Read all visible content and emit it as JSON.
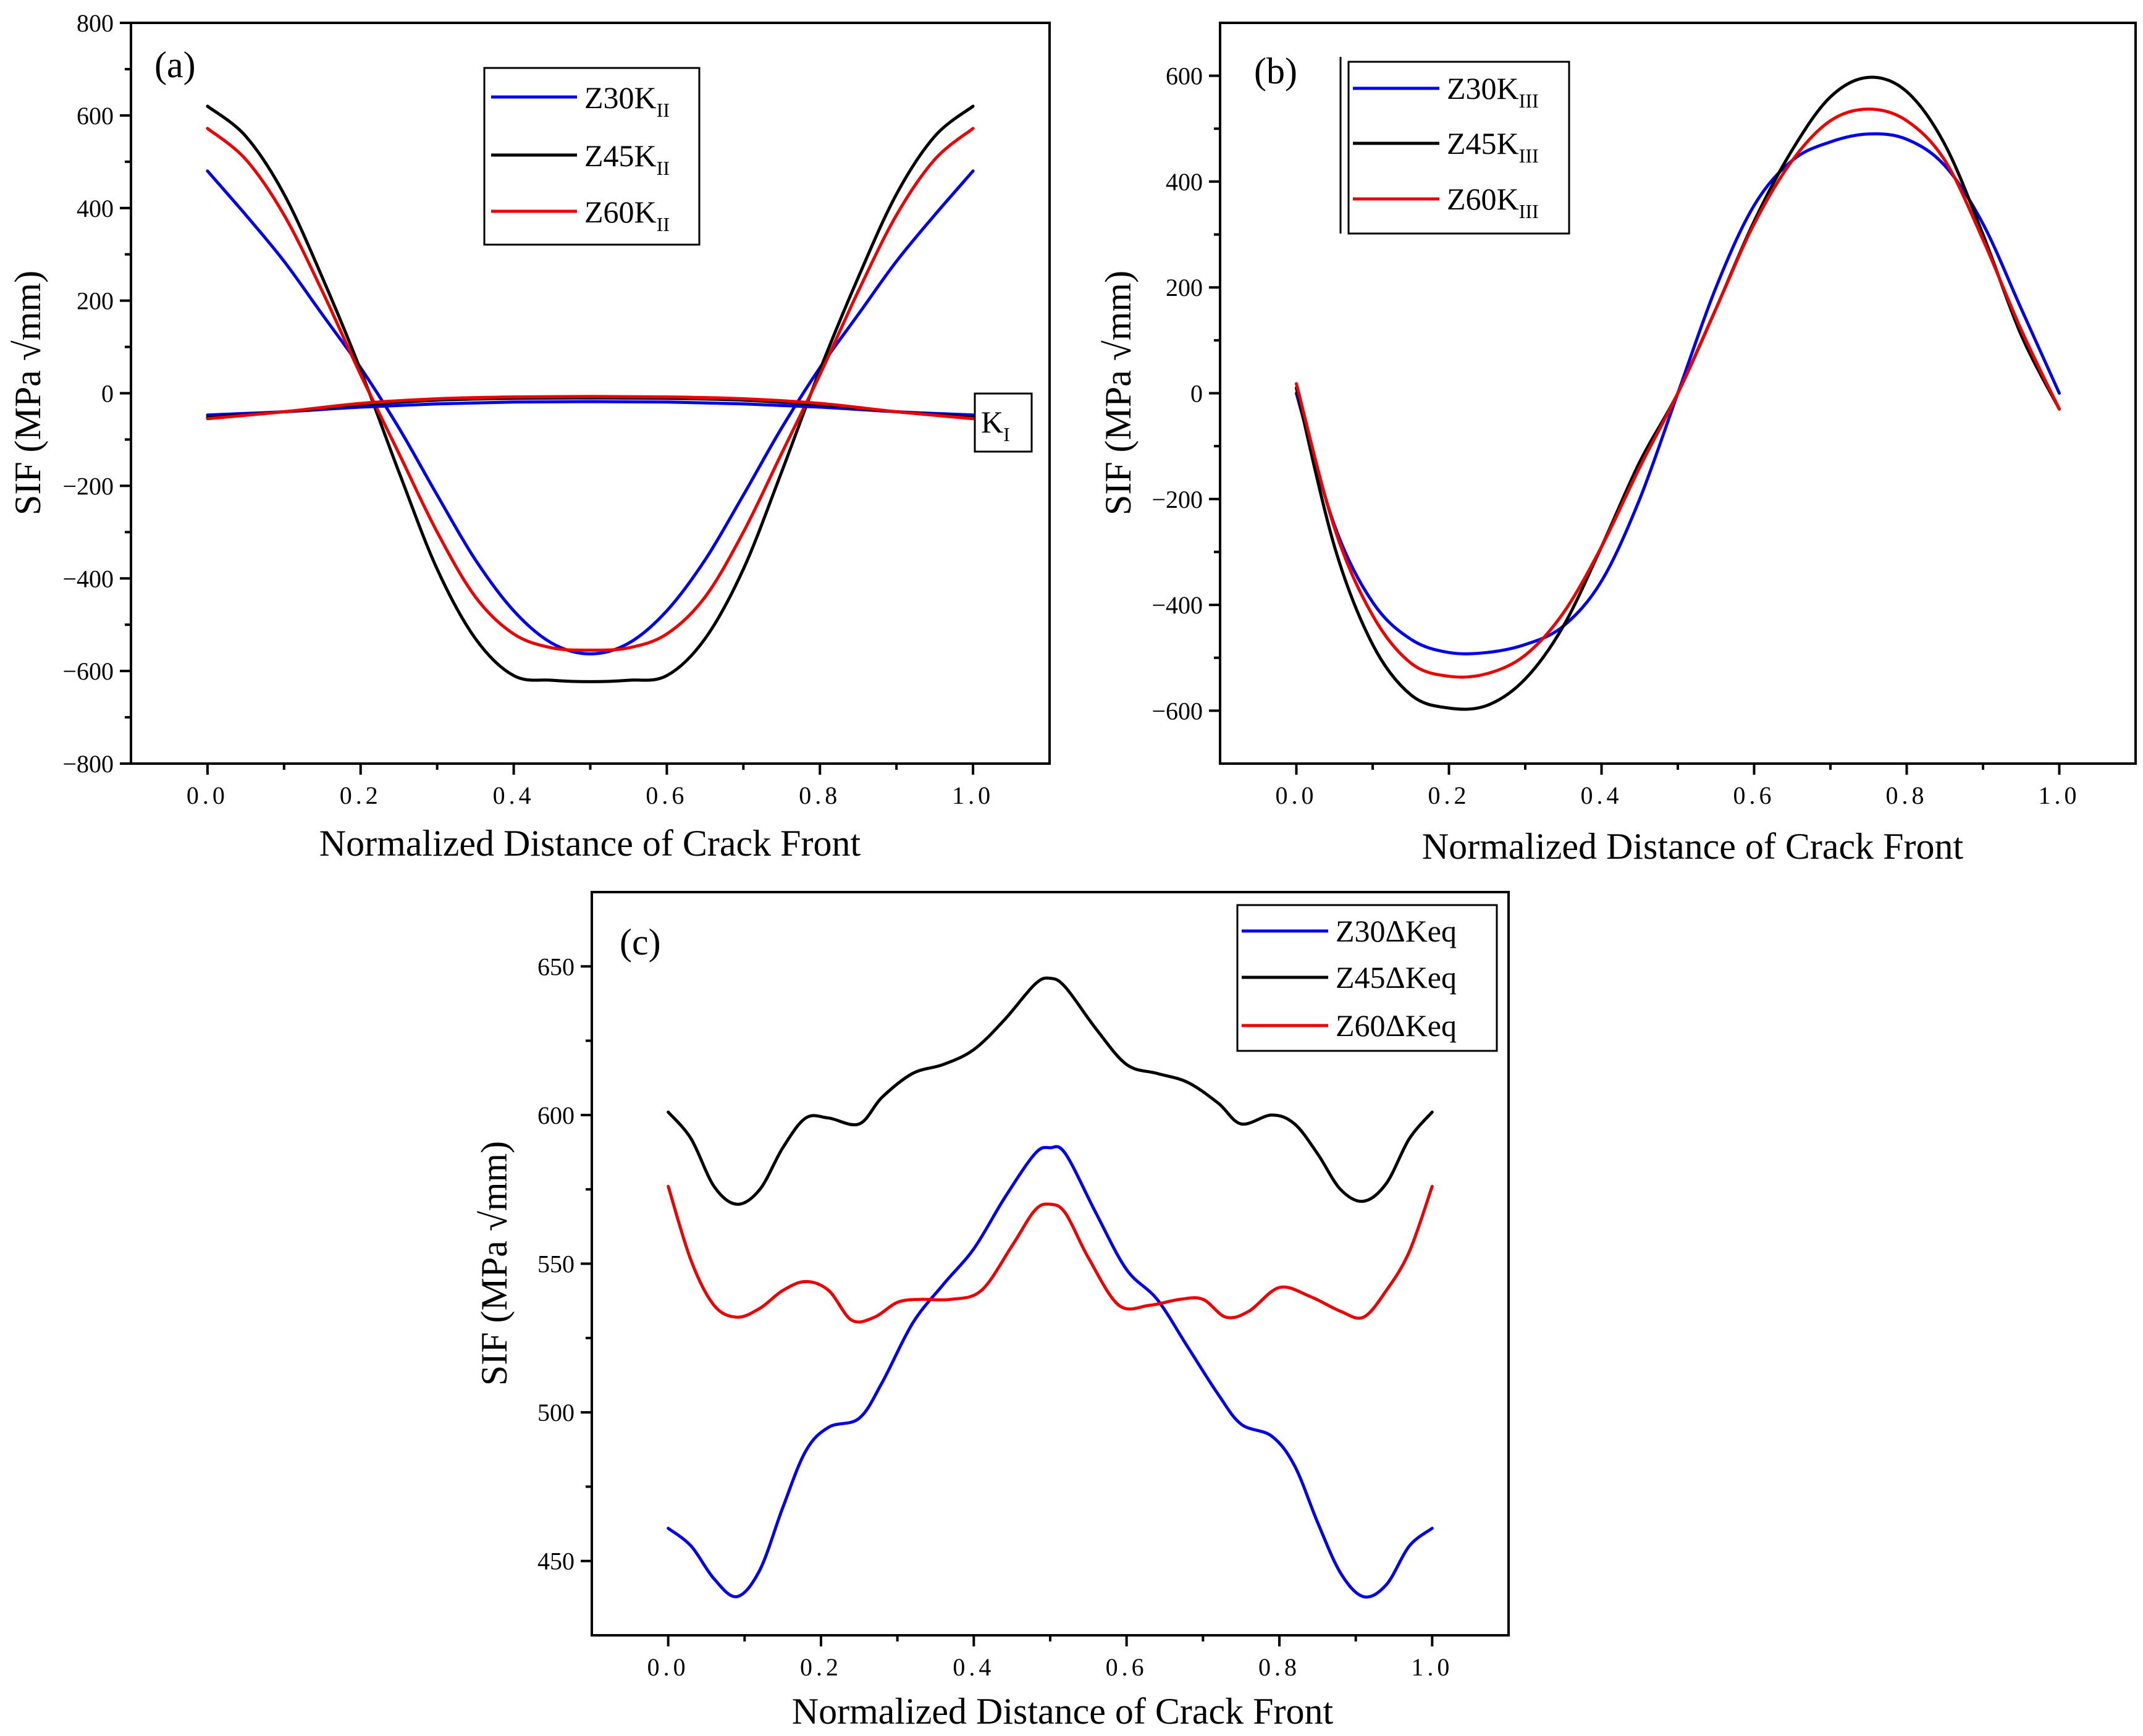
{
  "chart_data": [
    {
      "panel": "(a)",
      "type": "line",
      "title": "",
      "xlabel": "Normalized Distance of Crack Front",
      "ylabel": "SIF (MPa √mm)",
      "xlim": [
        -0.1,
        1.1
      ],
      "ylim": [
        -800,
        800
      ],
      "xticks": [
        0.0,
        0.2,
        0.4,
        0.6,
        0.8,
        1.0
      ],
      "xtick_labels": [
        "0.0",
        "0.2",
        "0.4",
        "0.6",
        "0.8",
        "1.0"
      ],
      "yticks": [
        -800,
        -600,
        -400,
        -200,
        0,
        200,
        400,
        600,
        800
      ],
      "ytick_labels": [
        "−800",
        "−600",
        "−400",
        "−200",
        "0",
        "200",
        "400",
        "600",
        "800"
      ],
      "legend_position": "top-center",
      "annotation": {
        "base": "K",
        "sub": "I"
      },
      "series": [
        {
          "name": "Z30K",
          "sub": "II",
          "color": "#0000ee",
          "in_legend": true,
          "x": [
            0.0,
            0.05,
            0.1,
            0.15,
            0.2,
            0.25,
            0.3,
            0.35,
            0.4,
            0.45,
            0.5,
            0.55,
            0.6,
            0.65,
            0.7,
            0.75,
            0.8,
            0.85,
            0.9,
            0.95,
            1.0
          ],
          "y": [
            480,
            385,
            285,
            170,
            55,
            -75,
            -220,
            -360,
            -470,
            -540,
            -563,
            -540,
            -470,
            -360,
            -220,
            -75,
            55,
            170,
            285,
            385,
            480
          ]
        },
        {
          "name": "Z45K",
          "sub": "II",
          "color": "#000000",
          "in_legend": true,
          "x": [
            0.0,
            0.05,
            0.1,
            0.15,
            0.2,
            0.25,
            0.3,
            0.35,
            0.4,
            0.45,
            0.5,
            0.55,
            0.6,
            0.65,
            0.7,
            0.75,
            0.8,
            0.85,
            0.9,
            0.95,
            1.0
          ],
          "y": [
            620,
            555,
            430,
            250,
            50,
            -170,
            -380,
            -530,
            -610,
            -620,
            -623,
            -620,
            -610,
            -530,
            -380,
            -170,
            50,
            250,
            430,
            555,
            620
          ]
        },
        {
          "name": "Z60K",
          "sub": "II",
          "color": "#ee0000",
          "in_legend": true,
          "x": [
            0.0,
            0.05,
            0.1,
            0.15,
            0.2,
            0.25,
            0.3,
            0.35,
            0.4,
            0.45,
            0.5,
            0.55,
            0.6,
            0.65,
            0.7,
            0.75,
            0.8,
            0.85,
            0.9,
            0.95,
            1.0
          ],
          "y": [
            572,
            505,
            385,
            220,
            40,
            -130,
            -300,
            -440,
            -520,
            -550,
            -555,
            -550,
            -520,
            -440,
            -300,
            -130,
            40,
            220,
            385,
            505,
            572
          ]
        },
        {
          "name": "Z30K_I",
          "sub": "",
          "color": "#0000ee",
          "in_legend": false,
          "x": [
            0.0,
            0.1,
            0.2,
            0.3,
            0.4,
            0.5,
            0.6,
            0.7,
            0.8,
            0.9,
            1.0
          ],
          "y": [
            -47,
            -40,
            -30,
            -23,
            -19,
            -18,
            -19,
            -23,
            -30,
            -40,
            -47
          ]
        },
        {
          "name": "Z45K_I",
          "sub": "",
          "color": "#000000",
          "in_legend": false,
          "x": [
            0.0,
            0.1,
            0.2,
            0.3,
            0.4,
            0.5,
            0.6,
            0.7,
            0.8,
            0.9,
            1.0
          ],
          "y": [
            -52,
            -40,
            -25,
            -15,
            -11,
            -10,
            -11,
            -15,
            -25,
            -40,
            -52
          ]
        },
        {
          "name": "Z60K_I",
          "sub": "",
          "color": "#ee0000",
          "in_legend": false,
          "x": [
            0.0,
            0.1,
            0.2,
            0.3,
            0.4,
            0.5,
            0.6,
            0.7,
            0.8,
            0.9,
            1.0
          ],
          "y": [
            -55,
            -40,
            -22,
            -12,
            -8,
            -7,
            -8,
            -12,
            -22,
            -40,
            -55
          ]
        }
      ]
    },
    {
      "panel": "(b)",
      "type": "line",
      "title": "",
      "xlabel": "Normalized Distance of Crack Front",
      "ylabel": "SIF (MPa √mm)",
      "xlim": [
        -0.1,
        1.1
      ],
      "ylim": [
        -700,
        700
      ],
      "xticks": [
        0.0,
        0.2,
        0.4,
        0.6,
        0.8,
        1.0
      ],
      "xtick_labels": [
        "0.0",
        "0.2",
        "0.4",
        "0.6",
        "0.8",
        "1.0"
      ],
      "yticks": [
        -600,
        -400,
        -200,
        0,
        200,
        400,
        600
      ],
      "ytick_labels": [
        "−600",
        "−400",
        "−200",
        "0",
        "200",
        "400",
        "600"
      ],
      "legend_position": "top-left",
      "series": [
        {
          "name": "Z30K",
          "sub": "III",
          "color": "#0000ee",
          "in_legend": true,
          "x": [
            0.0,
            0.05,
            0.1,
            0.15,
            0.2,
            0.25,
            0.3,
            0.35,
            0.4,
            0.45,
            0.5,
            0.55,
            0.6,
            0.65,
            0.7,
            0.75,
            0.8,
            0.85,
            0.9,
            0.95,
            1.0
          ],
          "y": [
            0,
            -250,
            -395,
            -465,
            -490,
            -490,
            -475,
            -440,
            -355,
            -200,
            0,
            200,
            355,
            440,
            475,
            490,
            480,
            430,
            320,
            160,
            0
          ]
        },
        {
          "name": "Z45K",
          "sub": "III",
          "color": "#000000",
          "in_legend": true,
          "x": [
            0.0,
            0.05,
            0.1,
            0.15,
            0.2,
            0.25,
            0.3,
            0.35,
            0.4,
            0.45,
            0.5,
            0.55,
            0.6,
            0.65,
            0.7,
            0.75,
            0.8,
            0.85,
            0.9,
            0.95,
            1.0
          ],
          "y": [
            10,
            -290,
            -475,
            -570,
            -595,
            -590,
            -540,
            -440,
            -290,
            -130,
            0,
            160,
            325,
            460,
            560,
            597,
            570,
            470,
            300,
            110,
            -30
          ]
        },
        {
          "name": "Z60K",
          "sub": "III",
          "color": "#ee0000",
          "in_legend": true,
          "x": [
            0.0,
            0.05,
            0.1,
            0.15,
            0.2,
            0.25,
            0.3,
            0.35,
            0.4,
            0.45,
            0.5,
            0.55,
            0.6,
            0.65,
            0.7,
            0.75,
            0.8,
            0.85,
            0.9,
            0.95,
            1.0
          ],
          "y": [
            18,
            -255,
            -420,
            -510,
            -535,
            -530,
            -495,
            -415,
            -290,
            -140,
            0,
            160,
            320,
            440,
            515,
            537,
            515,
            440,
            290,
            120,
            -30
          ]
        }
      ]
    },
    {
      "panel": "(c)",
      "type": "line",
      "title": "",
      "xlabel": "Normalized Distance of Crack Front",
      "ylabel": "SIF (MPa √mm)",
      "xlim": [
        -0.1,
        1.1
      ],
      "ylim": [
        425,
        675
      ],
      "xticks": [
        0.0,
        0.2,
        0.4,
        0.6,
        0.8,
        1.0
      ],
      "xtick_labels": [
        "0.0",
        "0.2",
        "0.4",
        "0.6",
        "0.8",
        "1.0"
      ],
      "yticks": [
        450,
        500,
        550,
        600,
        650
      ],
      "ytick_labels": [
        "450",
        "500",
        "550",
        "600",
        "650"
      ],
      "legend_position": "top-right",
      "series": [
        {
          "name": "Z30ΔKeq",
          "sub": "",
          "color": "#0000ee",
          "in_legend": true,
          "x": [
            0.0,
            0.03,
            0.06,
            0.09,
            0.12,
            0.15,
            0.18,
            0.21,
            0.25,
            0.28,
            0.32,
            0.36,
            0.4,
            0.44,
            0.48,
            0.5,
            0.52,
            0.56,
            0.6,
            0.64,
            0.68,
            0.72,
            0.75,
            0.79,
            0.82,
            0.85,
            0.88,
            0.91,
            0.94,
            0.97,
            1.0
          ],
          "y": [
            461,
            455,
            444,
            438,
            447,
            468,
            487,
            495,
            498,
            510,
            530,
            543,
            555,
            572,
            587,
            589,
            587,
            567,
            548,
            538,
            522,
            506,
            496,
            492,
            482,
            463,
            446,
            438,
            442,
            455,
            461
          ]
        },
        {
          "name": "Z45ΔKeq",
          "sub": "",
          "color": "#000000",
          "in_legend": true,
          "x": [
            0.0,
            0.03,
            0.06,
            0.09,
            0.12,
            0.15,
            0.18,
            0.21,
            0.25,
            0.28,
            0.32,
            0.36,
            0.4,
            0.44,
            0.48,
            0.5,
            0.52,
            0.56,
            0.6,
            0.64,
            0.68,
            0.72,
            0.75,
            0.79,
            0.82,
            0.85,
            0.88,
            0.91,
            0.94,
            0.97,
            1.0
          ],
          "y": [
            601,
            592,
            576,
            570,
            575,
            589,
            599,
            599,
            597,
            606,
            614,
            617,
            622,
            632,
            644,
            646,
            643,
            629,
            617,
            614,
            611,
            604,
            597,
            600,
            597,
            587,
            575,
            571,
            577,
            592,
            601
          ]
        },
        {
          "name": "Z60ΔKeq",
          "sub": "",
          "color": "#ee0000",
          "in_legend": true,
          "x": [
            0.0,
            0.03,
            0.06,
            0.09,
            0.12,
            0.15,
            0.18,
            0.21,
            0.24,
            0.27,
            0.3,
            0.33,
            0.37,
            0.41,
            0.45,
            0.48,
            0.5,
            0.52,
            0.55,
            0.59,
            0.63,
            0.67,
            0.7,
            0.73,
            0.76,
            0.8,
            0.84,
            0.88,
            0.91,
            0.94,
            0.97,
            1.0
          ],
          "y": [
            576,
            551,
            536,
            532,
            535,
            541,
            544,
            541,
            531,
            532,
            537,
            538,
            538,
            541,
            556,
            568,
            570,
            567,
            552,
            536,
            536,
            538,
            538,
            532,
            534,
            542,
            539,
            534,
            532,
            541,
            554,
            576
          ]
        }
      ]
    }
  ]
}
